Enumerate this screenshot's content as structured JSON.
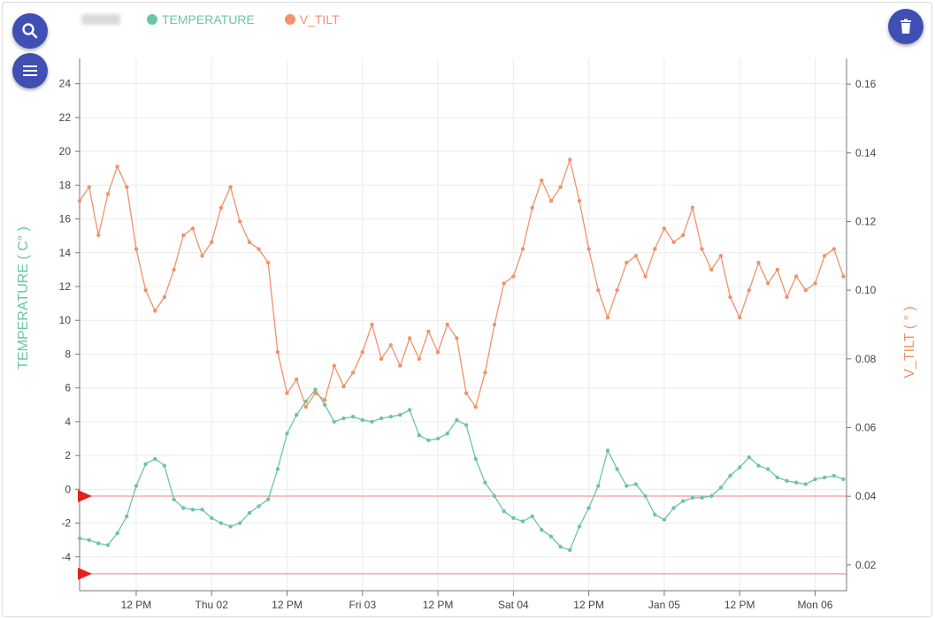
{
  "toolbar": {
    "search_icon": "search-icon",
    "menu_icon": "menu-icon",
    "delete_icon": "trash-icon",
    "button_color": "#3f4fb3"
  },
  "colors": {
    "temperature": "#6cc4a6",
    "v_tilt": "#f0926a",
    "threshold_line": "#f29a9a",
    "marker": "#e0221f"
  },
  "chart_data": {
    "type": "line",
    "legend": [
      "TEMPERATURE",
      "V_TILT"
    ],
    "legend_position": "top-left",
    "grid": true,
    "x_ticks": [
      "12 PM",
      "Thu 02",
      "12 PM",
      "Fri 03",
      "12 PM",
      "Sat 04",
      "12 PM",
      "Jan 05",
      "12 PM",
      "Mon 06"
    ],
    "x_tick_times": [
      "Jan 01 12:00",
      "Jan 02 00:00",
      "Jan 02 12:00",
      "Jan 03 00:00",
      "Jan 03 12:00",
      "Jan 04 00:00",
      "Jan 04 12:00",
      "Jan 05 00:00",
      "Jan 05 12:00",
      "Jan 06 00:00"
    ],
    "x_range": [
      "Jan 01 03:00",
      "Jan 06 05:00"
    ],
    "y_left": {
      "label": "TEMPERATURE ( C° )",
      "range": [
        -6,
        25.5
      ],
      "ticks": [
        -4,
        -2,
        0,
        2,
        4,
        6,
        8,
        10,
        12,
        14,
        16,
        18,
        20,
        22,
        24
      ]
    },
    "y_right": {
      "label": "V_TILT ( ° )",
      "range": [
        0.0125,
        0.1675
      ],
      "ticks": [
        "0.02",
        "0.04",
        "0.06",
        "0.08",
        "0.10",
        "0.12",
        "0.14",
        "0.16"
      ]
    },
    "thresholds": [
      -0.4,
      -5.0
    ],
    "series": [
      {
        "name": "TEMPERATURE",
        "axis": "left",
        "points": [
          [
            "Jan 01 03:00",
            -2.9
          ],
          [
            "Jan 01 04:30",
            -3.0
          ],
          [
            "Jan 01 06:00",
            -3.2
          ],
          [
            "Jan 01 07:30",
            -3.3
          ],
          [
            "Jan 01 09:00",
            -2.6
          ],
          [
            "Jan 01 10:30",
            -1.6
          ],
          [
            "Jan 01 12:00",
            0.2
          ],
          [
            "Jan 01 13:30",
            1.5
          ],
          [
            "Jan 01 15:00",
            1.8
          ],
          [
            "Jan 01 16:30",
            1.4
          ],
          [
            "Jan 01 18:00",
            -0.6
          ],
          [
            "Jan 01 19:30",
            -1.1
          ],
          [
            "Jan 01 21:00",
            -1.2
          ],
          [
            "Jan 01 22:30",
            -1.2
          ],
          [
            "Jan 02 00:00",
            -1.7
          ],
          [
            "Jan 02 01:30",
            -2.0
          ],
          [
            "Jan 02 03:00",
            -2.2
          ],
          [
            "Jan 02 04:30",
            -2.0
          ],
          [
            "Jan 02 06:00",
            -1.4
          ],
          [
            "Jan 02 07:30",
            -1.0
          ],
          [
            "Jan 02 09:00",
            -0.6
          ],
          [
            "Jan 02 10:30",
            1.2
          ],
          [
            "Jan 02 12:00",
            3.3
          ],
          [
            "Jan 02 13:30",
            4.4
          ],
          [
            "Jan 02 15:00",
            5.2
          ],
          [
            "Jan 02 16:30",
            5.9
          ],
          [
            "Jan 02 18:00",
            5.0
          ],
          [
            "Jan 02 19:30",
            4.0
          ],
          [
            "Jan 02 21:00",
            4.2
          ],
          [
            "Jan 02 22:30",
            4.3
          ],
          [
            "Jan 03 00:00",
            4.1
          ],
          [
            "Jan 03 01:30",
            4.0
          ],
          [
            "Jan 03 03:00",
            4.2
          ],
          [
            "Jan 03 04:30",
            4.3
          ],
          [
            "Jan 03 06:00",
            4.4
          ],
          [
            "Jan 03 07:30",
            4.7
          ],
          [
            "Jan 03 09:00",
            3.2
          ],
          [
            "Jan 03 10:30",
            2.9
          ],
          [
            "Jan 03 12:00",
            3.0
          ],
          [
            "Jan 03 13:30",
            3.3
          ],
          [
            "Jan 03 15:00",
            4.1
          ],
          [
            "Jan 03 16:30",
            3.8
          ],
          [
            "Jan 03 18:00",
            1.8
          ],
          [
            "Jan 03 19:30",
            0.4
          ],
          [
            "Jan 03 21:00",
            -0.4
          ],
          [
            "Jan 03 22:30",
            -1.3
          ],
          [
            "Jan 04 00:00",
            -1.7
          ],
          [
            "Jan 04 01:30",
            -1.9
          ],
          [
            "Jan 04 03:00",
            -1.6
          ],
          [
            "Jan 04 04:30",
            -2.4
          ],
          [
            "Jan 04 06:00",
            -2.8
          ],
          [
            "Jan 04 07:30",
            -3.4
          ],
          [
            "Jan 04 09:00",
            -3.6
          ],
          [
            "Jan 04 10:30",
            -2.2
          ],
          [
            "Jan 04 12:00",
            -1.1
          ],
          [
            "Jan 04 13:30",
            0.2
          ],
          [
            "Jan 04 15:00",
            2.3
          ],
          [
            "Jan 04 16:30",
            1.2
          ],
          [
            "Jan 04 18:00",
            0.2
          ],
          [
            "Jan 04 19:30",
            0.3
          ],
          [
            "Jan 04 21:00",
            -0.4
          ],
          [
            "Jan 04 22:30",
            -1.5
          ],
          [
            "Jan 05 00:00",
            -1.8
          ],
          [
            "Jan 05 01:30",
            -1.1
          ],
          [
            "Jan 05 03:00",
            -0.7
          ],
          [
            "Jan 05 04:30",
            -0.5
          ],
          [
            "Jan 05 06:00",
            -0.5
          ],
          [
            "Jan 05 07:30",
            -0.4
          ],
          [
            "Jan 05 09:00",
            0.1
          ],
          [
            "Jan 05 10:30",
            0.8
          ],
          [
            "Jan 05 12:00",
            1.3
          ],
          [
            "Jan 05 13:30",
            1.9
          ],
          [
            "Jan 05 15:00",
            1.4
          ],
          [
            "Jan 05 16:30",
            1.2
          ],
          [
            "Jan 05 18:00",
            0.7
          ],
          [
            "Jan 05 19:30",
            0.5
          ],
          [
            "Jan 05 21:00",
            0.4
          ],
          [
            "Jan 05 22:30",
            0.3
          ],
          [
            "Jan 06 00:00",
            0.6
          ],
          [
            "Jan 06 01:30",
            0.7
          ],
          [
            "Jan 06 03:00",
            0.8
          ],
          [
            "Jan 06 04:30",
            0.6
          ]
        ]
      },
      {
        "name": "V_TILT",
        "axis": "right",
        "points": [
          [
            "Jan 01 03:00",
            0.126
          ],
          [
            "Jan 01 04:30",
            0.13
          ],
          [
            "Jan 01 06:00",
            0.116
          ],
          [
            "Jan 01 07:30",
            0.128
          ],
          [
            "Jan 01 09:00",
            0.136
          ],
          [
            "Jan 01 10:30",
            0.13
          ],
          [
            "Jan 01 12:00",
            0.112
          ],
          [
            "Jan 01 13:30",
            0.1
          ],
          [
            "Jan 01 15:00",
            0.094
          ],
          [
            "Jan 01 16:30",
            0.098
          ],
          [
            "Jan 01 18:00",
            0.106
          ],
          [
            "Jan 01 19:30",
            0.116
          ],
          [
            "Jan 01 21:00",
            0.118
          ],
          [
            "Jan 01 22:30",
            0.11
          ],
          [
            "Jan 02 00:00",
            0.114
          ],
          [
            "Jan 02 01:30",
            0.124
          ],
          [
            "Jan 02 03:00",
            0.13
          ],
          [
            "Jan 02 04:30",
            0.12
          ],
          [
            "Jan 02 06:00",
            0.114
          ],
          [
            "Jan 02 07:30",
            0.112
          ],
          [
            "Jan 02 09:00",
            0.108
          ],
          [
            "Jan 02 10:30",
            0.082
          ],
          [
            "Jan 02 12:00",
            0.07
          ],
          [
            "Jan 02 13:30",
            0.074
          ],
          [
            "Jan 02 15:00",
            0.066
          ],
          [
            "Jan 02 16:30",
            0.07
          ],
          [
            "Jan 02 18:00",
            0.068
          ],
          [
            "Jan 02 19:30",
            0.078
          ],
          [
            "Jan 02 21:00",
            0.072
          ],
          [
            "Jan 02 22:30",
            0.076
          ],
          [
            "Jan 03 00:00",
            0.082
          ],
          [
            "Jan 03 01:30",
            0.09
          ],
          [
            "Jan 03 03:00",
            0.08
          ],
          [
            "Jan 03 04:30",
            0.084
          ],
          [
            "Jan 03 06:00",
            0.078
          ],
          [
            "Jan 03 07:30",
            0.086
          ],
          [
            "Jan 03 09:00",
            0.08
          ],
          [
            "Jan 03 10:30",
            0.088
          ],
          [
            "Jan 03 12:00",
            0.082
          ],
          [
            "Jan 03 13:30",
            0.09
          ],
          [
            "Jan 03 15:00",
            0.086
          ],
          [
            "Jan 03 16:30",
            0.07
          ],
          [
            "Jan 03 18:00",
            0.066
          ],
          [
            "Jan 03 19:30",
            0.076
          ],
          [
            "Jan 03 21:00",
            0.09
          ],
          [
            "Jan 03 22:30",
            0.102
          ],
          [
            "Jan 04 00:00",
            0.104
          ],
          [
            "Jan 04 01:30",
            0.112
          ],
          [
            "Jan 04 03:00",
            0.124
          ],
          [
            "Jan 04 04:30",
            0.132
          ],
          [
            "Jan 04 06:00",
            0.126
          ],
          [
            "Jan 04 07:30",
            0.13
          ],
          [
            "Jan 04 09:00",
            0.138
          ],
          [
            "Jan 04 10:30",
            0.126
          ],
          [
            "Jan 04 12:00",
            0.112
          ],
          [
            "Jan 04 13:30",
            0.1
          ],
          [
            "Jan 04 15:00",
            0.092
          ],
          [
            "Jan 04 16:30",
            0.1
          ],
          [
            "Jan 04 18:00",
            0.108
          ],
          [
            "Jan 04 19:30",
            0.11
          ],
          [
            "Jan 04 21:00",
            0.104
          ],
          [
            "Jan 04 22:30",
            0.112
          ],
          [
            "Jan 05 00:00",
            0.118
          ],
          [
            "Jan 05 01:30",
            0.114
          ],
          [
            "Jan 05 03:00",
            0.116
          ],
          [
            "Jan 05 04:30",
            0.124
          ],
          [
            "Jan 05 06:00",
            0.112
          ],
          [
            "Jan 05 07:30",
            0.106
          ],
          [
            "Jan 05 09:00",
            0.11
          ],
          [
            "Jan 05 10:30",
            0.098
          ],
          [
            "Jan 05 12:00",
            0.092
          ],
          [
            "Jan 05 13:30",
            0.1
          ],
          [
            "Jan 05 15:00",
            0.108
          ],
          [
            "Jan 05 16:30",
            0.102
          ],
          [
            "Jan 05 18:00",
            0.106
          ],
          [
            "Jan 05 19:30",
            0.098
          ],
          [
            "Jan 05 21:00",
            0.104
          ],
          [
            "Jan 05 22:30",
            0.1
          ],
          [
            "Jan 06 00:00",
            0.102
          ],
          [
            "Jan 06 01:30",
            0.11
          ],
          [
            "Jan 06 03:00",
            0.112
          ],
          [
            "Jan 06 04:30",
            0.104
          ]
        ]
      }
    ]
  }
}
